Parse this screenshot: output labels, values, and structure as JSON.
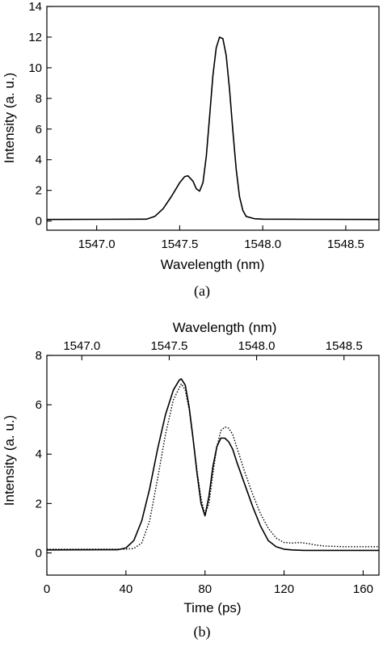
{
  "chart_data": [
    {
      "type": "line",
      "panel_label": "(a)",
      "xlabel": "Wavelength (nm)",
      "ylabel": "Intensity (a. u.)",
      "xlim": [
        1546.7,
        1548.7
      ],
      "ylim": [
        -0.6,
        14
      ],
      "xticks": [
        1547.0,
        1547.5,
        1548.0,
        1548.5
      ],
      "xtick_labels": [
        "1547.0",
        "1547.5",
        "1548.0",
        "1548.5"
      ],
      "yticks": [
        0,
        2,
        4,
        6,
        8,
        10,
        12,
        14
      ],
      "ytick_labels": [
        "0",
        "2",
        "4",
        "6",
        "8",
        "10",
        "12",
        "14"
      ],
      "grid": false,
      "series": [
        {
          "style": "solid",
          "x": [
            1546.7,
            1547.3,
            1547.35,
            1547.4,
            1547.45,
            1547.5,
            1547.53,
            1547.55,
            1547.58,
            1547.6,
            1547.62,
            1547.64,
            1547.66,
            1547.68,
            1547.7,
            1547.72,
            1547.74,
            1547.76,
            1547.78,
            1547.8,
            1547.82,
            1547.84,
            1547.86,
            1547.88,
            1547.9,
            1547.95,
            1548.0,
            1548.7
          ],
          "y": [
            0.1,
            0.12,
            0.3,
            0.8,
            1.6,
            2.5,
            2.9,
            2.95,
            2.6,
            2.1,
            1.95,
            2.5,
            4.2,
            6.8,
            9.5,
            11.3,
            12.0,
            11.9,
            10.8,
            8.6,
            5.9,
            3.4,
            1.6,
            0.7,
            0.3,
            0.15,
            0.12,
            0.1
          ]
        }
      ]
    },
    {
      "type": "line",
      "panel_label": "(b)",
      "xlabel": "Time (ps)",
      "ylabel": "Intensity (a. u.)",
      "x2label": "Wavelength (nm)",
      "xlim": [
        0,
        168
      ],
      "ylim": [
        -0.9,
        8
      ],
      "xticks": [
        0,
        40,
        80,
        120,
        160
      ],
      "xtick_labels": [
        "0",
        "40",
        "80",
        "120",
        "160"
      ],
      "x2ticks": [
        1547.0,
        1547.5,
        1548.0,
        1548.5
      ],
      "x2tick_labels": [
        "1547.0",
        "1547.5",
        "1548.0",
        "1548.5"
      ],
      "x2lim": [
        1546.8,
        1548.7
      ],
      "yticks": [
        0,
        2,
        4,
        6,
        8
      ],
      "ytick_labels": [
        "0",
        "2",
        "4",
        "6",
        "8"
      ],
      "grid": false,
      "series": [
        {
          "style": "solid",
          "x": [
            0,
            36,
            40,
            44,
            48,
            52,
            56,
            60,
            64,
            67,
            68,
            70,
            72,
            74,
            76,
            78,
            80,
            82,
            84,
            86,
            88,
            90,
            92,
            94,
            96,
            100,
            104,
            108,
            112,
            116,
            120,
            124,
            130,
            168
          ],
          "y": [
            0.12,
            0.13,
            0.2,
            0.5,
            1.3,
            2.6,
            4.2,
            5.6,
            6.6,
            7.0,
            7.05,
            6.8,
            5.9,
            4.6,
            3.2,
            2.0,
            1.5,
            2.3,
            3.5,
            4.3,
            4.65,
            4.65,
            4.5,
            4.2,
            3.7,
            2.8,
            1.9,
            1.1,
            0.5,
            0.25,
            0.15,
            0.12,
            0.1,
            0.1
          ]
        },
        {
          "style": "dotted",
          "x": [
            0,
            40,
            44,
            48,
            52,
            56,
            60,
            64,
            68,
            70,
            72,
            74,
            76,
            78,
            80,
            82,
            84,
            86,
            88,
            90,
            92,
            94,
            96,
            100,
            104,
            108,
            112,
            116,
            120,
            124,
            128,
            132,
            136,
            140,
            150,
            168
          ],
          "y": [
            0.15,
            0.15,
            0.18,
            0.4,
            1.3,
            3.0,
            4.8,
            6.2,
            6.85,
            6.6,
            5.8,
            4.6,
            3.3,
            2.2,
            1.55,
            2.0,
            3.2,
            4.3,
            4.95,
            5.1,
            5.05,
            4.8,
            4.3,
            3.3,
            2.4,
            1.6,
            1.0,
            0.6,
            0.42,
            0.4,
            0.42,
            0.38,
            0.32,
            0.28,
            0.25,
            0.25
          ]
        }
      ]
    }
  ]
}
